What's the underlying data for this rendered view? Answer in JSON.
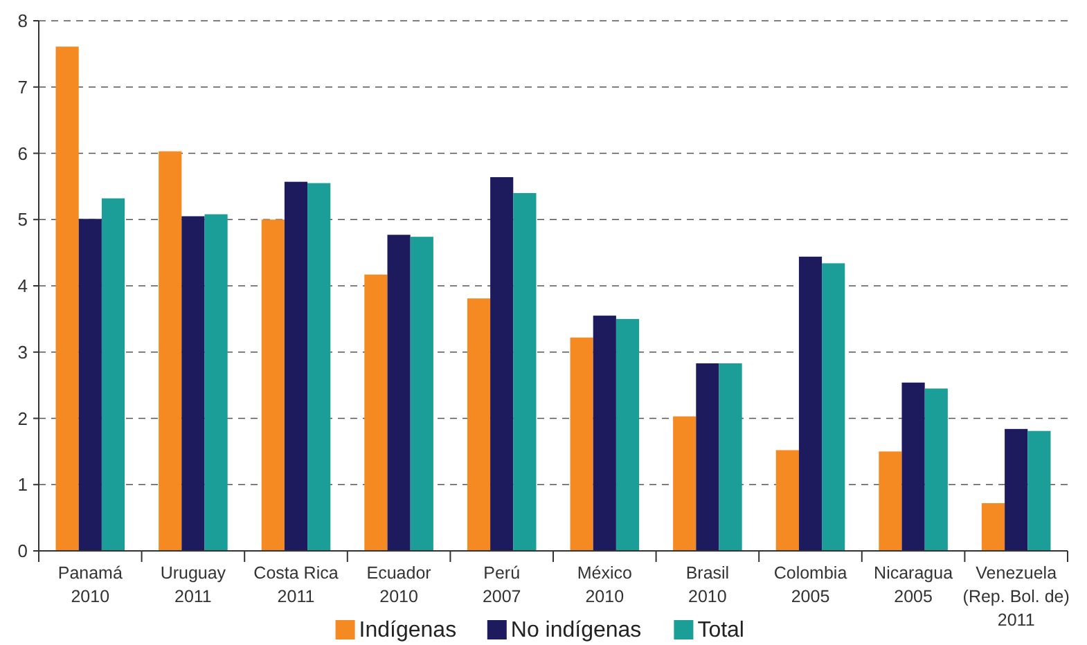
{
  "chart_data": {
    "type": "bar",
    "categories": [
      "Panamá\n2010",
      "Uruguay\n2011",
      "Costa Rica\n2011",
      "Ecuador\n2010",
      "Perú\n2007",
      "México\n2010",
      "Brasil\n2010",
      "Colombia\n2005",
      "Nicaragua\n2005",
      "Venezuela\n(Rep. Bol. de)\n2011"
    ],
    "series": [
      {
        "name": "Indígenas",
        "color": "#f58a22",
        "values": [
          7.61,
          6.03,
          5.0,
          4.17,
          3.81,
          3.22,
          2.03,
          1.52,
          1.5,
          0.72
        ]
      },
      {
        "name": "No indígenas",
        "color": "#1e1a5e",
        "values": [
          5.01,
          5.05,
          5.57,
          4.77,
          5.64,
          3.55,
          2.83,
          4.44,
          2.54,
          1.84
        ]
      },
      {
        "name": "Total",
        "color": "#1a9e97",
        "values": [
          5.32,
          5.08,
          5.55,
          4.74,
          5.4,
          3.5,
          2.83,
          4.34,
          2.45,
          1.81
        ]
      }
    ],
    "ylim": [
      0,
      8
    ],
    "yticks": [
      0,
      1,
      2,
      3,
      4,
      5,
      6,
      7,
      8
    ],
    "grid": "y",
    "legend": "bottom"
  }
}
